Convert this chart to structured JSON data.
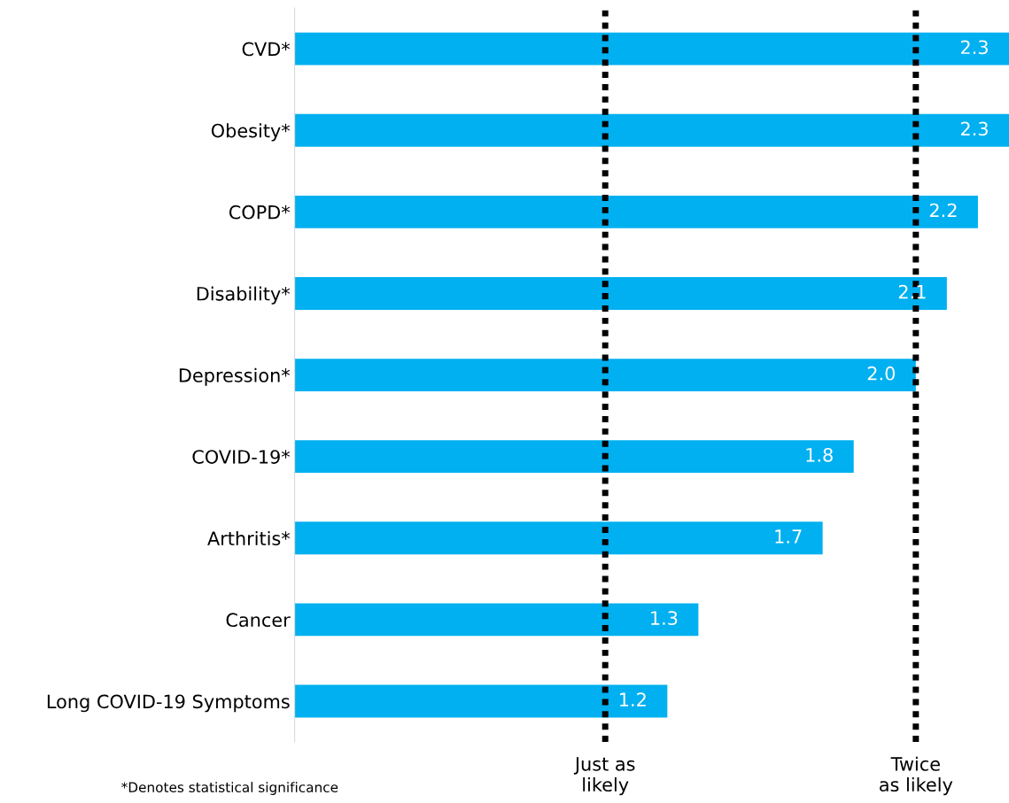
{
  "chart_data": {
    "type": "bar",
    "orientation": "horizontal",
    "categories": [
      "CVD*",
      "Obesity*",
      "COPD*",
      "Disability*",
      "Depression*",
      "COVID-19*",
      "Arthritis*",
      "Cancer",
      "Long COVID-19 Symptoms"
    ],
    "values": [
      2.3,
      2.3,
      2.2,
      2.1,
      2.0,
      1.8,
      1.7,
      1.3,
      1.2
    ],
    "value_labels": [
      "2.3",
      "2.3",
      "2.2",
      "2.1",
      "2.0",
      "1.8",
      "1.7",
      "1.3",
      "1.2"
    ],
    "color": "#00b0f0",
    "xlim": [
      0,
      2.3
    ],
    "tick_labels": "y",
    "grid": false,
    "legend": false,
    "ref_lines": [
      {
        "axis": "x",
        "value": 1,
        "label": "Just as\nlikely",
        "color": "#000000",
        "line_style": "dotted"
      },
      {
        "axis": "x",
        "value": 2,
        "label": "Twice\nas likely",
        "color": "#000000",
        "line_style": "dotted"
      }
    ],
    "annotations": [
      "*Denotes statistical significance"
    ]
  }
}
